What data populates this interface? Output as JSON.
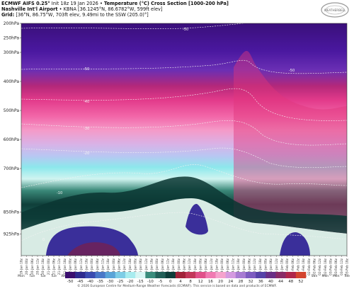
{
  "header": {
    "line1_bold": "ECMWF AIFS 0.25°",
    "line1_rest": " Init 18z 19 Jan 2026 • ",
    "line1_bold2": "Temperature (°C) Cross Section [1000-200 hPa]",
    "line2_bold": "Nashville Int'l Airport",
    "line2_rest": " • KBNA [36.1245°N, 86.6782°W, 599ft elev]",
    "line3_bold": "Grid:",
    "line3_rest": " [36°N, 86.75°W, 703ft elev, 9.49mi to the SSW (205.0)°]"
  },
  "logo_text": "WEATHERBELL",
  "footer": "© 2026 European Centre for Medium-Range Weather Forecasts (ECMWF). This service is based on data and products of ECMWF.",
  "chart_data": {
    "type": "heatmap",
    "title": "Temperature (°C) Cross Section [1000-200 hPa]",
    "y_axis": {
      "ticks": [
        "200hPa",
        "250hPa",
        "300hPa",
        "400hPa",
        "500hPa",
        "600hPa",
        "700hPa",
        "850hPa",
        "925hPa"
      ],
      "levels_hPa": [
        200,
        250,
        300,
        400,
        500,
        600,
        700,
        850,
        925
      ],
      "range_hPa": [
        200,
        1000
      ]
    },
    "x_axis": {
      "hours": [
        "18z",
        "00z",
        "06z",
        "12z",
        "18z",
        "00z",
        "06z",
        "12z",
        "18z",
        "00z",
        "06z",
        "12z",
        "18z",
        "00z",
        "06z",
        "12z",
        "18z",
        "00z",
        "06z",
        "12z",
        "18z",
        "00z",
        "06z",
        "12z",
        "18z",
        "00z",
        "06z",
        "12z",
        "18z",
        "00z",
        "06z",
        "12z",
        "18z",
        "00z",
        "06z",
        "12z",
        "18z",
        "00z",
        "06z",
        "12z",
        "18z",
        "00z",
        "06z",
        "12z",
        "18z",
        "00z",
        "06z",
        "12z",
        "18z",
        "00z",
        "06z",
        "12z",
        "18z",
        "00z",
        "06z",
        "12z",
        "18z",
        "00z",
        "06z",
        "12z",
        "18z"
      ],
      "dates": [
        "19-Jan",
        "20-Jan",
        "20-Jan",
        "20-Jan",
        "20-Jan",
        "21-Jan",
        "21-Jan",
        "21-Jan",
        "21-Jan",
        "22-Jan",
        "22-Jan",
        "22-Jan",
        "22-Jan",
        "23-Jan",
        "23-Jan",
        "23-Jan",
        "23-Jan",
        "24-Jan",
        "24-Jan",
        "24-Jan",
        "24-Jan",
        "25-Jan",
        "25-Jan",
        "25-Jan",
        "25-Jan",
        "26-Jan",
        "26-Jan",
        "26-Jan",
        "26-Jan",
        "27-Jan",
        "27-Jan",
        "27-Jan",
        "27-Jan",
        "28-Jan",
        "28-Jan",
        "28-Jan",
        "28-Jan",
        "29-Jan",
        "29-Jan",
        "29-Jan",
        "29-Jan",
        "30-Jan",
        "30-Jan",
        "30-Jan",
        "30-Jan",
        "31-Jan",
        "31-Jan",
        "31-Jan",
        "31-Jan",
        "01-Feb",
        "01-Feb",
        "01-Feb",
        "01-Feb",
        "02-Feb",
        "02-Feb",
        "02-Feb",
        "02-Feb",
        "03-Feb",
        "03-Feb",
        "03-Feb",
        "03-Feb"
      ],
      "days": [
        "Mon",
        "Tue",
        "Tue",
        "Tue",
        "Wed",
        "Wed",
        "Thu",
        "Thu",
        "Fri",
        "Fri",
        "Sat",
        "Sat",
        "Sun",
        "Sun",
        "Mon",
        "Mon",
        "Tue",
        "Tue",
        "Wed",
        "Wed",
        "Thu",
        "Thu",
        "Fri",
        "Fri",
        "Sat",
        "Sat",
        "Sun",
        "Sun",
        "Mon",
        "Mon",
        "Tue"
      ]
    },
    "contour_labels": [
      {
        "value": "-50",
        "hour": 180,
        "hPa": 205
      },
      {
        "value": "-50",
        "hour": 30,
        "hPa": 258
      },
      {
        "value": "-50",
        "hour": 345,
        "hPa": 262
      },
      {
        "value": "-40",
        "hour": 30,
        "hPa": 330
      },
      {
        "value": "-30",
        "hour": 30,
        "hPa": 405
      },
      {
        "value": "-20",
        "hour": 30,
        "hPa": 480
      },
      {
        "value": "-10",
        "hour": 30,
        "hPa": 620
      },
      {
        "value": "0",
        "hour": 30,
        "hPa": 815
      }
    ],
    "cold_pockets": [
      {
        "name": "lower-trop",
        "hours": [
          5,
          145
        ],
        "hPa": [
          860,
          1000
        ],
        "tempC": -25
      },
      {
        "name": "mid-level",
        "hours": [
          210,
          230
        ],
        "hPa": [
          700,
          870
        ],
        "tempC": -25
      },
      {
        "name": "late-period",
        "hours": [
          325,
          360
        ],
        "hPa": [
          860,
          1000
        ],
        "tempC": -25
      }
    ],
    "colorbar": {
      "labels": [
        "-50",
        "-45",
        "-40",
        "-35",
        "-30",
        "-25",
        "-20",
        "-15",
        "-10",
        "-5",
        "0",
        "4",
        "8",
        "12",
        "16",
        "20",
        "24",
        "28",
        "32",
        "36",
        "40",
        "44",
        "48",
        "52"
      ],
      "unit": "°C",
      "palette": [
        "#3b0f6f",
        "#2e2b8f",
        "#3a4bb0",
        "#4a78c8",
        "#5aa4d8",
        "#7ecde6",
        "#a8ecef",
        "#d8f6f4",
        "#3a8c7c",
        "#225f58",
        "#0e3d3a",
        "#a2233a",
        "#c2375a",
        "#e0508a",
        "#f07ab2",
        "#f5a3cd",
        "#d49ae0",
        "#a77bd2",
        "#7d5cc0",
        "#5643a8",
        "#6a2f86",
        "#8a2b66",
        "#b0264a",
        "#d4442e"
      ]
    }
  }
}
